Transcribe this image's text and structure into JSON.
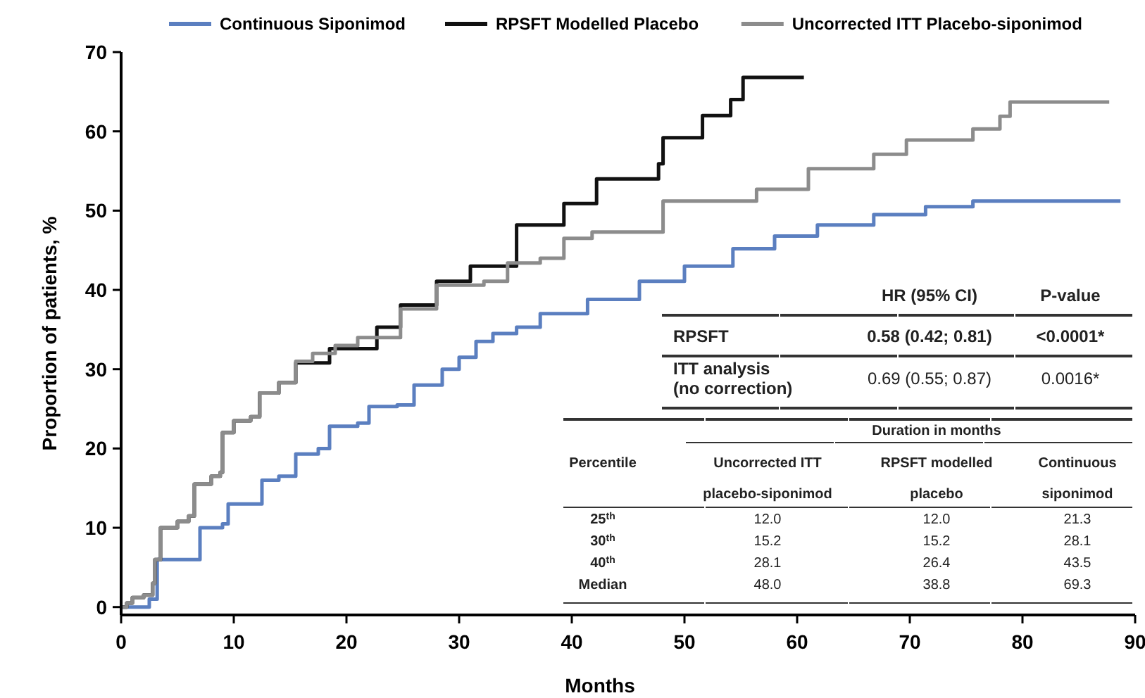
{
  "chart_data": {
    "type": "step",
    "xlabel": "Months",
    "ylabel": "Proportion of patients, %",
    "xlim": [
      0,
      90
    ],
    "xticks": [
      0,
      10,
      20,
      30,
      40,
      50,
      60,
      70,
      80,
      90
    ],
    "ylim": [
      -1,
      70
    ],
    "yticks": [
      0,
      10,
      20,
      30,
      40,
      50,
      60,
      70
    ],
    "grid": false,
    "legend": "top",
    "series": [
      {
        "name": "Continuous Siponimod",
        "color": "#5b7fc0",
        "x": [
          0,
          2,
          2.5,
          3.2,
          5.7,
          7,
          9,
          9.5,
          12,
          12.5,
          14,
          15.5,
          17.5,
          18.5,
          21,
          22,
          24.5,
          26,
          27.5,
          28.5,
          30,
          31.5,
          33,
          35.1,
          37.2,
          41.4,
          46,
          50,
          54.3,
          58,
          61.8,
          66.8,
          71.4,
          75.6,
          88.7
        ],
        "values": [
          0,
          0,
          1,
          6,
          6,
          10,
          10.5,
          13,
          13,
          16,
          16.5,
          19.3,
          20,
          22.8,
          23.2,
          25.3,
          25.5,
          28,
          28,
          30,
          31.5,
          33.5,
          34.5,
          35.3,
          37,
          38.8,
          41.1,
          43,
          45.2,
          46.8,
          48.2,
          49.5,
          50.5,
          51.2,
          51.2
        ]
      },
      {
        "name": "RPSFT Modelled Placebo",
        "color": "#111111",
        "x": [
          0,
          0.5,
          1,
          2,
          2.8,
          3,
          3.5,
          5,
          6,
          6.5,
          8,
          8.8,
          9,
          10,
          11.5,
          12.3,
          14,
          15.5,
          18.5,
          22.7,
          24.8,
          28,
          31,
          35.1,
          39.3,
          42.2,
          47.7,
          48.1,
          51.6,
          54.1,
          55.2,
          60.6
        ],
        "values": [
          0,
          0.5,
          1.2,
          1.5,
          3,
          6,
          10,
          10.8,
          11.5,
          15.5,
          16.5,
          17,
          22,
          23.5,
          24,
          27,
          28.3,
          30.8,
          32.6,
          35.3,
          38.1,
          41.1,
          43,
          48.2,
          50.9,
          54,
          55.9,
          59.2,
          62,
          64,
          66.8,
          66.8
        ]
      },
      {
        "name": "Uncorrected ITT Placebo-siponimod",
        "color": "#8c8c8c",
        "x": [
          0,
          0.5,
          1,
          2,
          2.8,
          3,
          3.5,
          5,
          6,
          6.5,
          8,
          8.8,
          9,
          10,
          11.5,
          12.3,
          14,
          15.5,
          17,
          19,
          21,
          24.8,
          28,
          32.2,
          34.3,
          37.2,
          39.3,
          41.8,
          48.1,
          56.4,
          61,
          66.8,
          69.7,
          75.6,
          78,
          78.9,
          87.7
        ],
        "values": [
          0,
          0.5,
          1.2,
          1.5,
          3,
          6,
          10,
          10.8,
          11.5,
          15.5,
          16.5,
          17,
          22,
          23.5,
          24,
          27,
          28.3,
          31,
          32,
          33,
          34,
          37.6,
          40.6,
          41.1,
          43.4,
          44,
          46.5,
          47.3,
          51.2,
          52.7,
          55.3,
          57.1,
          58.9,
          60.3,
          61.9,
          63.7,
          63.7
        ]
      }
    ],
    "annotations": [
      "HR (95% CI)",
      "P-value",
      "RPSFT",
      "0.58 (0.42; 0.81)",
      "<0.0001*",
      "ITT analysis\n(no correction)",
      "0.69 (0.55; 0.87)",
      "0.0016*",
      "Duration in months",
      "Percentile",
      "Uncorrected ITT\nplacebo-siponimod",
      "RPSFT modelled\nplacebo",
      "Continuous\nsiponimod",
      "25$^{th}$",
      "12.0",
      "12.0",
      "21.3",
      "30$^{th}$",
      "15.2",
      "15.2",
      "28.1",
      "40$^{th}$",
      "28.1",
      "26.4",
      "43.5",
      "Median",
      "48.0",
      "38.8",
      "69.3"
    ]
  }
}
